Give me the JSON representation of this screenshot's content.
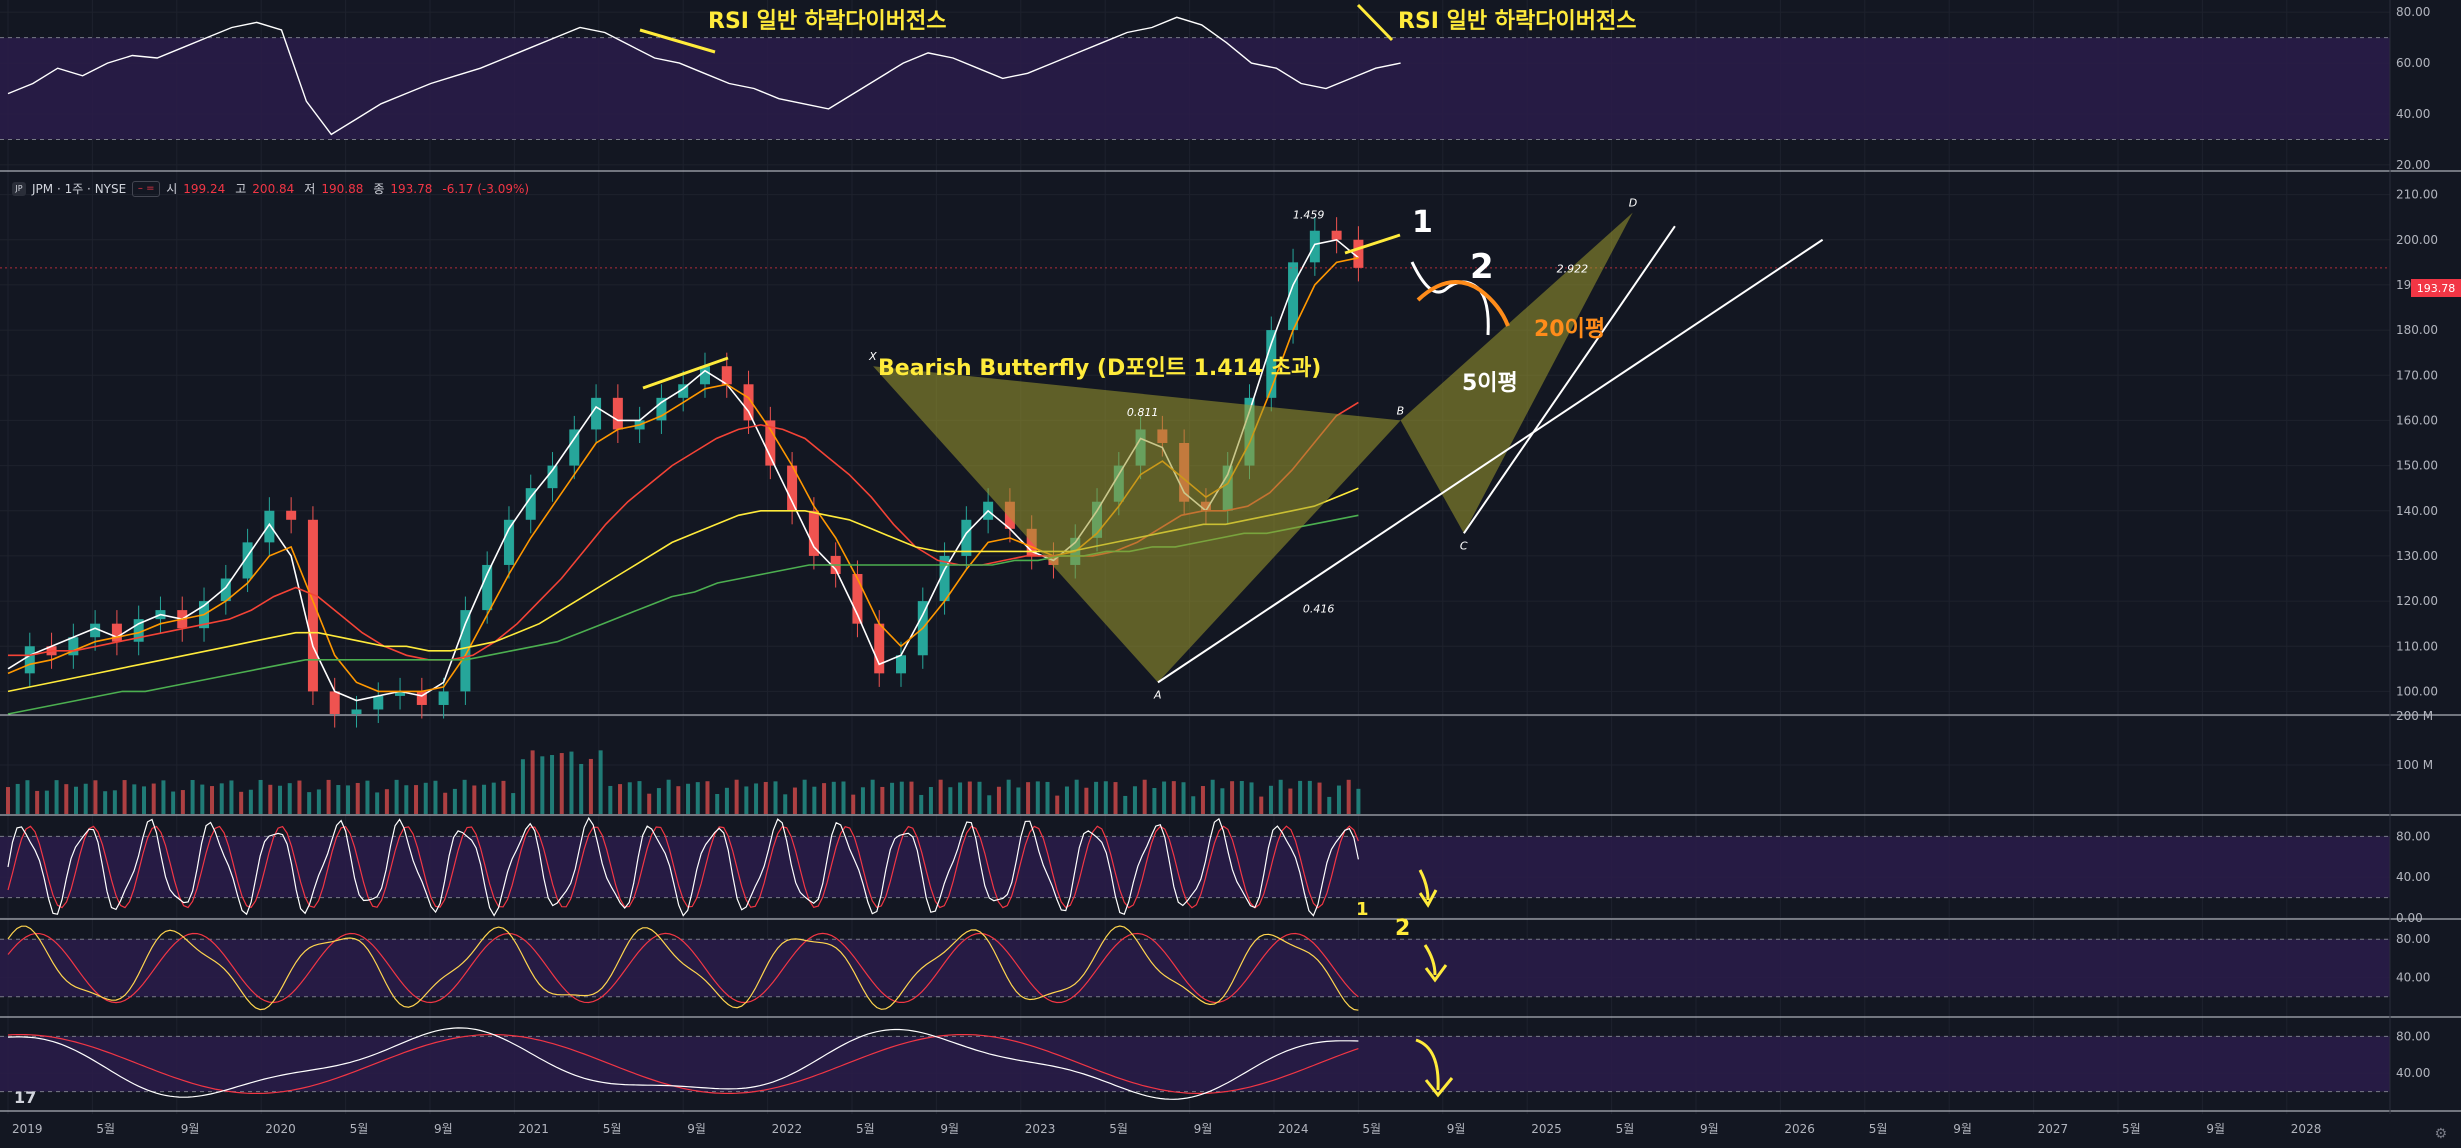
{
  "legend": {
    "symbol": "JPM · 1주 · NYSE",
    "logo": "JP",
    "open_label": "시",
    "open": "199.24",
    "high_label": "고",
    "high": "200.84",
    "low_label": "저",
    "low": "190.88",
    "close_label": "종",
    "close": "193.78",
    "change": "-6.17 (-3.09%)"
  },
  "price_tag": "193.78",
  "colors": {
    "background": "#131722",
    "up": "#26a69a",
    "down": "#ef5350",
    "panel_fill": "#2a1c4a",
    "annotation_yellow": "#ffeb3b",
    "annotation_orange": "#ff8c1a",
    "ema5": "#ffffff",
    "ema20": "#ff9800",
    "ema60": "#f44336",
    "ema120": "#ffeb3b",
    "ema240": "#4caf50"
  },
  "annotations": {
    "rsi_div_left": "RSI 일반 하락다이버전스",
    "rsi_div_right": "RSI 일반 하락다이버전스",
    "butterfly": "Bearish Butterfly (D포인트 1.414 초과)",
    "ma20": "20이평",
    "ma5": "5이평",
    "handwritten_1": "1",
    "handwritten_2": "2"
  },
  "x_axis": [
    "2019",
    "5월",
    "9월",
    "2020",
    "5월",
    "9월",
    "2021",
    "5월",
    "9월",
    "2022",
    "5월",
    "9월",
    "2023",
    "5월",
    "9월",
    "2024",
    "5월",
    "9월",
    "2025",
    "5월",
    "9월",
    "2026",
    "5월",
    "9월",
    "2027",
    "5월",
    "9월",
    "2028"
  ],
  "chart_data": [
    {
      "type": "line",
      "panel": "RSI",
      "y_ticks": [
        "80.00",
        "60.00",
        "40.00",
        "20.00"
      ],
      "ylim": [
        18,
        84
      ],
      "bands": [
        30,
        70
      ],
      "x_start": "2019-01",
      "series": [
        {
          "values": [
            48,
            52,
            58,
            55,
            60,
            63,
            62,
            66,
            70,
            74,
            76,
            73,
            45,
            32,
            38,
            44,
            48,
            52,
            55,
            58,
            62,
            66,
            70,
            74,
            72,
            67,
            62,
            60,
            56,
            52,
            50,
            46,
            44,
            42,
            48,
            54,
            60,
            64,
            62,
            58,
            54,
            56,
            60,
            64,
            68,
            72,
            74,
            78,
            75,
            68,
            60,
            58,
            52,
            50,
            54,
            58,
            60
          ]
        }
      ]
    },
    {
      "type": "candlestick",
      "panel": "price",
      "y_ticks": [
        "210.00",
        "200.00",
        "190.00",
        "180.00",
        "170.00",
        "160.00",
        "150.00",
        "140.00",
        "130.00",
        "120.00",
        "110.00",
        "100.00"
      ],
      "ylim": [
        95,
        215
      ],
      "x_start": "2019-01",
      "close": [
        104,
        110,
        108,
        112,
        115,
        111,
        116,
        118,
        114,
        120,
        125,
        133,
        140,
        138,
        100,
        95,
        96,
        99,
        100,
        97,
        100,
        118,
        128,
        138,
        145,
        150,
        158,
        165,
        158,
        160,
        165,
        168,
        172,
        168,
        160,
        150,
        140,
        130,
        126,
        115,
        104,
        108,
        120,
        130,
        138,
        142,
        136,
        130,
        128,
        134,
        142,
        150,
        158,
        155,
        142,
        140,
        150,
        165,
        180,
        195,
        202,
        200,
        193.78
      ],
      "patterns": {
        "xabcd": {
          "X": "X",
          "A": "A",
          "B": "B",
          "C": "C",
          "D": "D"
        },
        "ratios": [
          "0.811",
          "0.416",
          "1.459",
          "2.922"
        ],
        "values": {
          "X": 172,
          "A": 102,
          "B": 160,
          "C": 135,
          "D": 206
        }
      },
      "moving_averages": [
        {
          "values": [
            105,
            108,
            110,
            112,
            114,
            112,
            115,
            117,
            116,
            119,
            123,
            130,
            137,
            130,
            110,
            100,
            98,
            99,
            100,
            99,
            102,
            115,
            126,
            136,
            143,
            149,
            156,
            163,
            160,
            160,
            164,
            167,
            171,
            168,
            162,
            152,
            142,
            132,
            127,
            117,
            106,
            108,
            117,
            127,
            135,
            140,
            136,
            131,
            129,
            133,
            140,
            148,
            156,
            154,
            144,
            140,
            148,
            162,
            177,
            190,
            199,
            200,
            196
          ]
        },
        {
          "values": [
            104,
            106,
            107,
            109,
            111,
            112,
            113,
            115,
            116,
            117,
            120,
            124,
            130,
            132,
            120,
            108,
            102,
            100,
            100,
            100,
            101,
            108,
            117,
            126,
            134,
            141,
            148,
            155,
            158,
            159,
            161,
            164,
            167,
            168,
            165,
            158,
            150,
            141,
            134,
            125,
            115,
            110,
            114,
            120,
            127,
            133,
            134,
            132,
            130,
            131,
            135,
            141,
            148,
            151,
            147,
            143,
            146,
            155,
            167,
            180,
            190,
            195,
            196
          ]
        },
        {
          "values": [
            108,
            108,
            109,
            109,
            110,
            111,
            112,
            113,
            114,
            115,
            116,
            118,
            121,
            123,
            121,
            117,
            113,
            110,
            108,
            107,
            107,
            108,
            111,
            115,
            120,
            125,
            131,
            137,
            142,
            146,
            150,
            153,
            156,
            158,
            159,
            158,
            156,
            152,
            148,
            143,
            137,
            132,
            129,
            128,
            128,
            129,
            130,
            130,
            130,
            130,
            131,
            133,
            136,
            139,
            140,
            140,
            141,
            144,
            149,
            155,
            161,
            164
          ]
        },
        {
          "values": [
            100,
            101,
            102,
            103,
            104,
            105,
            106,
            107,
            108,
            109,
            110,
            111,
            112,
            113,
            113,
            112,
            111,
            110,
            110,
            109,
            109,
            110,
            111,
            113,
            115,
            118,
            121,
            124,
            127,
            130,
            133,
            135,
            137,
            139,
            140,
            140,
            140,
            139,
            138,
            136,
            134,
            132,
            131,
            131,
            131,
            131,
            131,
            131,
            131,
            132,
            133,
            134,
            135,
            136,
            137,
            137,
            138,
            139,
            140,
            141,
            143,
            145
          ]
        },
        {
          "values": [
            95,
            96,
            97,
            98,
            99,
            100,
            100,
            101,
            102,
            103,
            104,
            105,
            106,
            107,
            107,
            107,
            107,
            107,
            107,
            107,
            107,
            108,
            109,
            110,
            111,
            113,
            115,
            117,
            119,
            121,
            122,
            124,
            125,
            126,
            127,
            128,
            128,
            128,
            128,
            128,
            128,
            128,
            128,
            128,
            129,
            129,
            130,
            130,
            131,
            131,
            132,
            132,
            133,
            134,
            135,
            135,
            136,
            137,
            138,
            139
          ]
        }
      ]
    },
    {
      "type": "bar",
      "panel": "volume",
      "y_ticks": [
        "200 M",
        "100 M"
      ],
      "ylim": [
        0,
        200
      ]
    },
    {
      "type": "line",
      "panel": "stochastic-fast",
      "y_ticks": [
        "80.00",
        "40.00",
        "0.00"
      ],
      "ylim": [
        0,
        100
      ],
      "bands": [
        20,
        80
      ]
    },
    {
      "type": "line",
      "panel": "stochastic-mid",
      "y_ticks": [
        "80.00",
        "40.00"
      ],
      "ylim": [
        0,
        100
      ],
      "bands": [
        20,
        80
      ]
    },
    {
      "type": "line",
      "panel": "stochastic-slow",
      "y_ticks": [
        "80.00",
        "40.00"
      ],
      "ylim": [
        0,
        100
      ],
      "bands": [
        20,
        80
      ]
    }
  ]
}
